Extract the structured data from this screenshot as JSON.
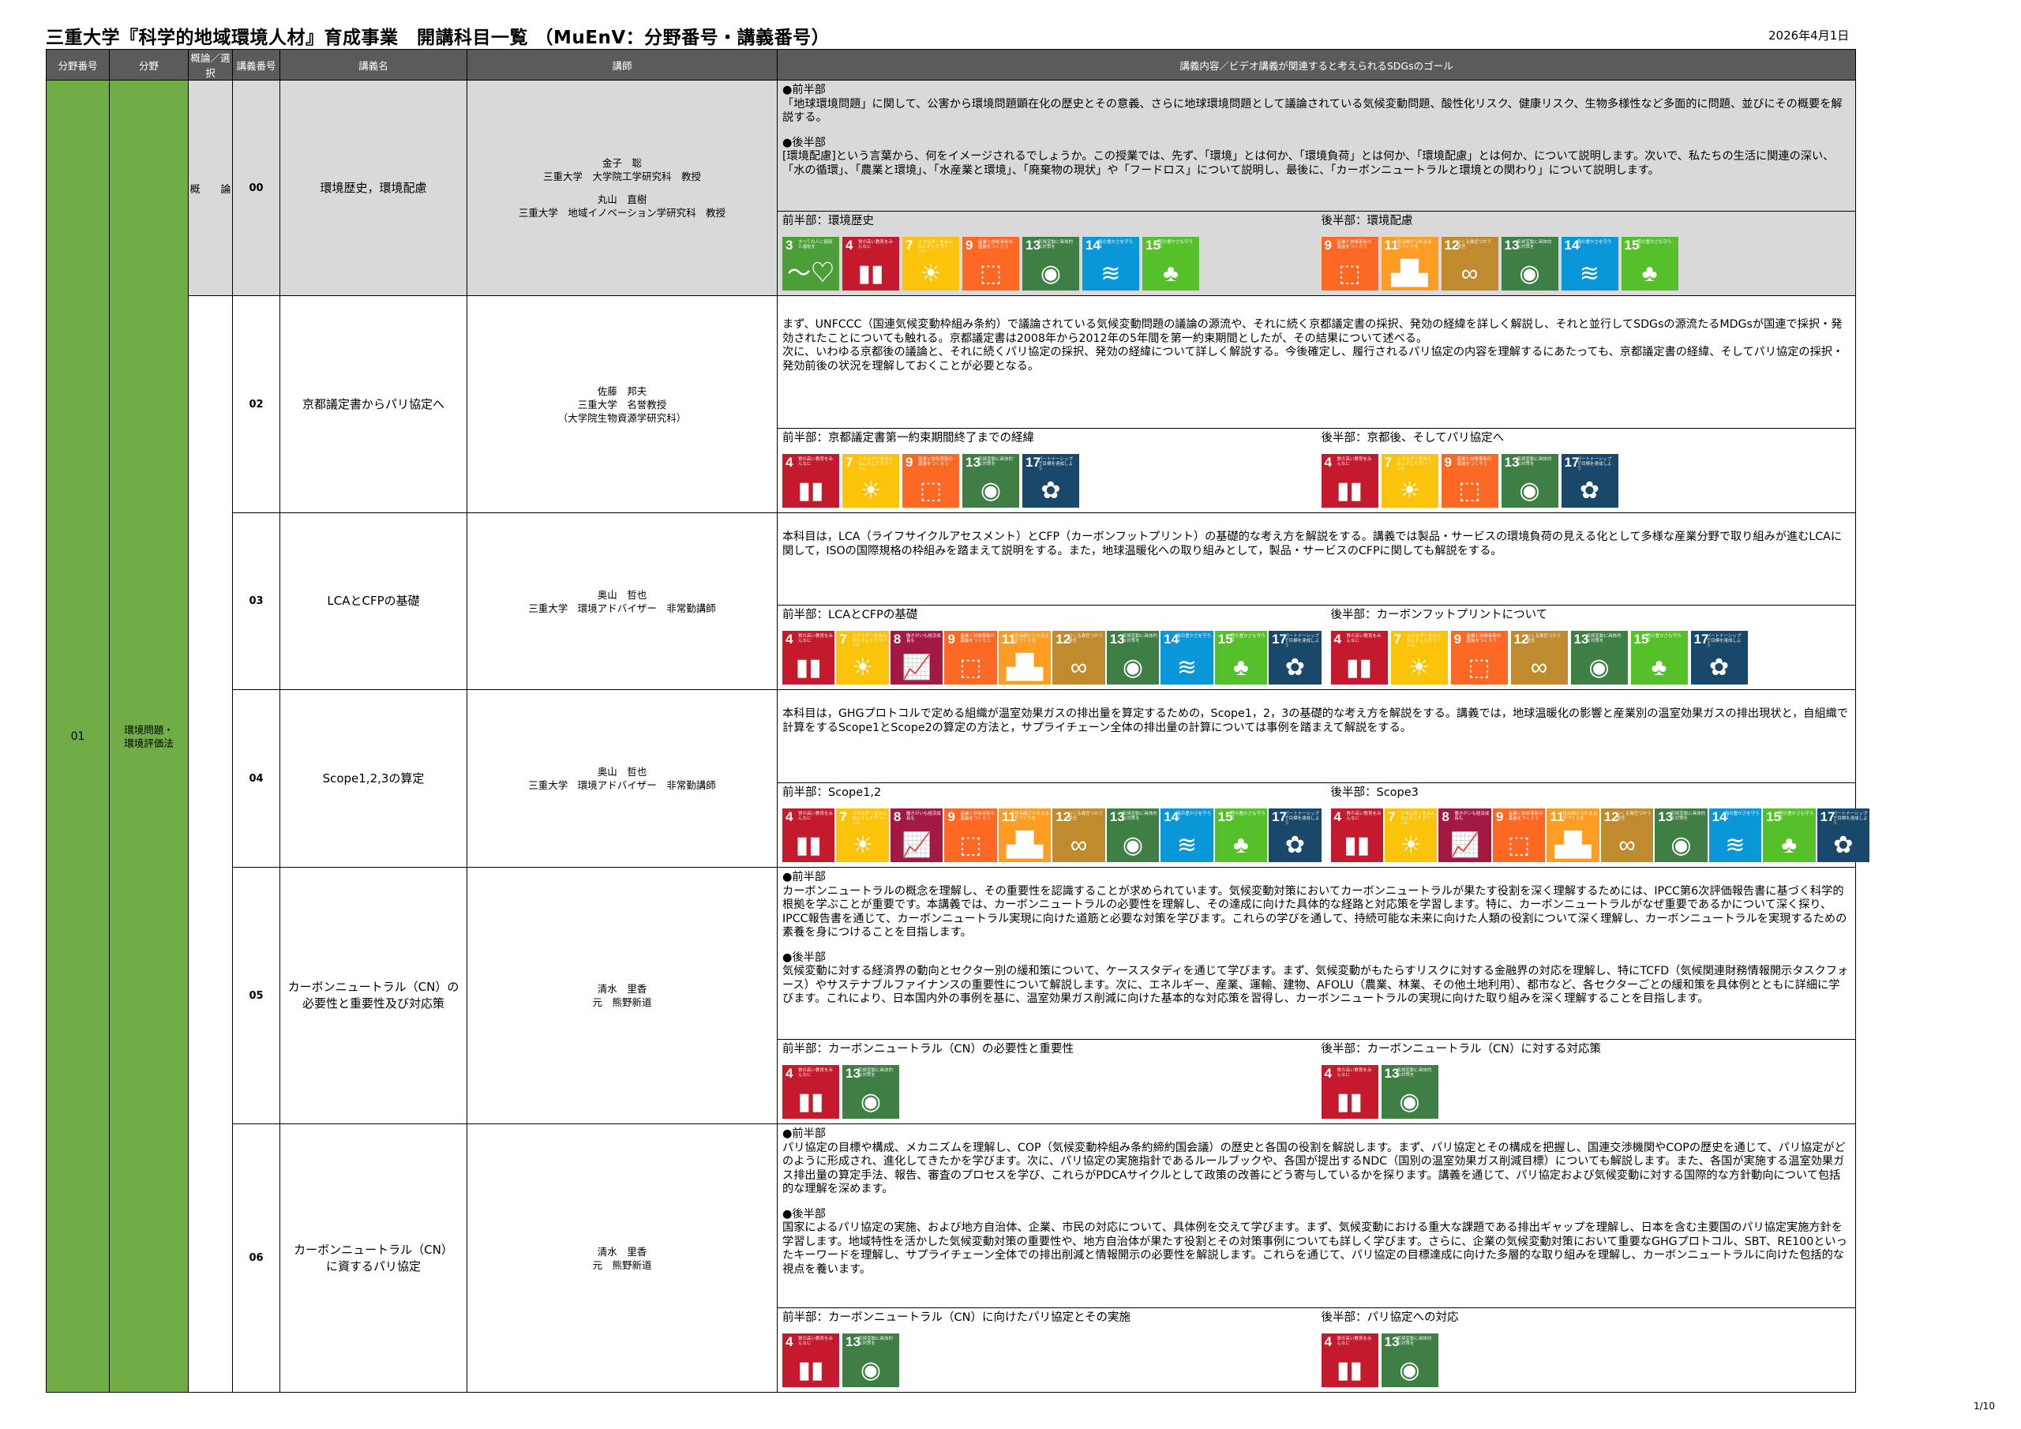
{
  "title": "三重大学『科学的地域環境人材』育成事業　開講科目一覧 （MuEnV：分野番号・講義番号）",
  "date": "2026年4月1日",
  "page": "1/10",
  "headers": {
    "field_no": "分野番号",
    "field": "分野",
    "type": "概論／選択",
    "lecture_no": "講義番号",
    "lecture_name": "講義名",
    "instructor": "講師",
    "content": "講義内容／ビデオ講義が関連すると考えられるSDGsのゴール"
  },
  "field": {
    "no": "01",
    "name_line1": "環境問題・",
    "name_line2": "環境評価法"
  },
  "sdg_colors": {
    "3": "#4c9f38",
    "4": "#c5192d",
    "7": "#fcc30b",
    "8": "#a21942",
    "9": "#fd6925",
    "11": "#fd9d24",
    "12": "#bf8b2e",
    "13": "#3f7e44",
    "14": "#0a97d9",
    "15": "#56c02b",
    "17": "#19486a"
  },
  "sdg_glyphs": {
    "3": "〜♡",
    "4": "▮▮",
    "7": "☀",
    "8": "📈",
    "9": "⬚",
    "11": "▟▙",
    "12": "∞",
    "13": "◉",
    "14": "≋",
    "15": "♣",
    "17": "✿"
  },
  "sdg_small": {
    "3": "すべての人に健康と福祉を",
    "4": "質の高い教育をみんなに",
    "7": "エネルギーをみんなにそしてクリーンに",
    "8": "働きがいも経済成長も",
    "9": "産業と技術革新の基盤をつくろう",
    "11": "住み続けられるまちづくりを",
    "12": "つくる責任つかう責任",
    "13": "気候変動に具体的な対策を",
    "14": "海の豊かさを守ろう",
    "15": "陸の豊かさも守ろう",
    "17": "パートナーシップで目標を達成しよう"
  },
  "rows": [
    {
      "type": "概　　論",
      "no": "00",
      "name": [
        "環境歴史，環境配慮"
      ],
      "instructor": [
        "金子　聡",
        "三重大学　大学院工学研究科　教授",
        "",
        "丸山　直樹",
        "三重大学　地域イノベーション学研究科　教授"
      ],
      "desc": [
        "●前半部",
        "「地球環境問題」に関して、公害から環境問題顕在化の歴史とその意義、さらに地球環境問題として議論されている気候変動問題、酸性化リスク、健康リスク、生物多様性など多面的に問題、並びにその概要を解説する。",
        "",
        "●後半部",
        "[環境配慮]という言葉から、何をイメージされるでしょうか。この授業では、先ず、「環境」とは何か、「環境負荷」とは何か、「環境配慮」とは何か、について説明します。次いで、私たちの生活に関連の深い、「水の循環」、「農業と環境」、「水産業と環境」、「廃棄物の現状」や「フードロス」について説明し、最後に、「カーボンニュートラルと環境との関わり」について説明します。"
      ],
      "left_label": "前半部：環境歴史",
      "left_sdgs": [
        "3",
        "4",
        "7",
        "9",
        "13",
        "14",
        "15"
      ],
      "right_label": "後半部：環境配慮",
      "right_sdgs": [
        "9",
        "11",
        "12",
        "13",
        "14",
        "15"
      ]
    },
    {
      "type": "",
      "no": "02",
      "name": [
        "京都議定書からパリ協定へ"
      ],
      "instructor": [
        "佐藤　邦夫",
        "三重大学　名誉教授",
        "（大学院生物資源学研究科）"
      ],
      "desc": [
        "まず、UNFCCC（国連気候変動枠組み条約）で議論されている気候変動問題の議論の源流や、それに続く京都議定書の採択、発効の経緯を詳しく解説し、それと並行してSDGsの源流たるMDGsが国連で採択・発効されたことについても触れる。京都議定書は2008年から2012年の5年間を第一約束期間としたが、その結果について述べる。",
        "次に、いわゆる京都後の議論と、それに続くパリ協定の採択、発効の経緯について詳しく解説する。今後確定し、履行されるパリ協定の内容を理解するにあたっても、京都議定書の経緯、そしてパリ協定の採択・発効前後の状況を理解しておくことが必要となる。"
      ],
      "left_label": "前半部：京都議定書第一約束期間終了までの経緯",
      "left_sdgs": [
        "4",
        "7",
        "9",
        "13",
        "17"
      ],
      "right_label": "後半部：京都後、そしてパリ協定へ",
      "right_sdgs": [
        "4",
        "7",
        "9",
        "13",
        "17"
      ]
    },
    {
      "type": "",
      "no": "03",
      "name": [
        "LCAとCFPの基礎"
      ],
      "instructor": [
        "奥山　哲也",
        "三重大学　環境アドバイザー　非常勤講師"
      ],
      "desc": [
        "本科目は，LCA（ライフサイクルアセスメント）とCFP（カーボンフットプリント）の基礎的な考え方を解説をする。講義では製品・サービスの環境負荷の見える化として多様な産業分野で取り組みが進むLCAに関して，ISOの国際規格の枠組みを踏まえて説明をする。また，地球温暖化への取り組みとして，製品・サービスのCFPに関しても解説をする。"
      ],
      "left_label": "前半部：LCAとCFPの基礎",
      "left_sdgs": [
        "4",
        "7",
        "8",
        "9",
        "11",
        "12",
        "13",
        "14",
        "15",
        "17"
      ],
      "right_label": "後半部：カーボンフットプリントについて",
      "right_sdgs": [
        "4",
        "7",
        "9",
        "12",
        "13",
        "15",
        "17"
      ]
    },
    {
      "type": "",
      "no": "04",
      "name": [
        "Scope1,2,3の算定"
      ],
      "instructor": [
        "奥山　哲也",
        "三重大学　環境アドバイザー　非常勤講師"
      ],
      "desc": [
        "本科目は，GHGプロトコルで定める組織が温室効果ガスの排出量を算定するための，Scope1，2，3の基礎的な考え方を解説をする。講義では，地球温暖化の影響と産業別の温室効果ガスの排出現状と，自組織で計算をするScope1とScope2の算定の方法と，サプライチェーン全体の排出量の計算については事例を踏まえて解説をする。"
      ],
      "left_label": "前半部：Scope1,2",
      "left_sdgs": [
        "4",
        "7",
        "8",
        "9",
        "11",
        "12",
        "13",
        "14",
        "15",
        "17"
      ],
      "right_label": "後半部：Scope3",
      "right_sdgs": [
        "4",
        "7",
        "8",
        "9",
        "11",
        "12",
        "13",
        "14",
        "15",
        "17"
      ]
    },
    {
      "type": "",
      "no": "05",
      "name": [
        "カーボンニュートラル（CN）の",
        "必要性と重要性及び対応策"
      ],
      "instructor": [
        "清水　里香",
        "元　熊野新道"
      ],
      "desc": [
        "●前半部",
        "カーボンニュートラルの概念を理解し、その重要性を認識することが求められています。気候変動対策においてカーボンニュートラルが果たす役割を深く理解するためには、IPCC第6次評価報告書に基づく科学的根拠を学ぶことが重要です。本講義では、カーボンニュートラルの必要性を理解し、その達成に向けた具体的な経路と対応策を学習します。特に、カーボンニュートラルがなぜ重要であるかについて深く探り、IPCC報告書を通じて、カーボンニュートラル実現に向けた道筋と必要な対策を学びます。これらの学びを通して、持続可能な未来に向けた人類の役割について深く理解し、カーボンニュートラルを実現するための素養を身につけることを目指します。",
        "",
        "●後半部",
        "気候変動に対する経済界の動向とセクター別の緩和策について、ケーススタディを通じて学びます。まず、気候変動がもたらすリスクに対する金融界の対応を理解し、特にTCFD（気候関連財務情報開示タスクフォース）やサステナブルファイナンスの重要性について解説します。次に、エネルギー、産業、運輸、建物、AFOLU（農業、林業、その他土地利用）、都市など、各セクターごとの緩和策を具体例とともに詳細に学びます。これにより、日本国内外の事例を基に、温室効果ガス削減に向けた基本的な対応策を習得し、カーボンニュートラルの実現に向けた取り組みを深く理解することを目指します。"
      ],
      "left_label": "前半部：カーボンニュートラル（CN）の必要性と重要性",
      "left_sdgs": [
        "4",
        "13"
      ],
      "right_label": "後半部：カーボンニュートラル（CN）に対する対応策",
      "right_sdgs": [
        "4",
        "13"
      ]
    },
    {
      "type": "",
      "no": "06",
      "name": [
        "カーボンニュートラル（CN）",
        "に資するパリ協定"
      ],
      "instructor": [
        "清水　里香",
        "元　熊野新道"
      ],
      "desc": [
        "●前半部",
        "パリ協定の目標や構成、メカニズムを理解し、COP（気候変動枠組み条約締約国会議）の歴史と各国の役割を解説します。まず、パリ協定とその構成を把握し、国連交渉機関やCOPの歴史を通じて、パリ協定がどのように形成され、進化してきたかを学びます。次に、パリ協定の実施指針であるルールブックや、各国が提出するNDC（国別の温室効果ガス削減目標）についても解説します。また、各国が実施する温室効果ガス排出量の算定手法、報告、審査のプロセスを学び、これらがPDCAサイクルとして政策の改善にどう寄与しているかを探ります。講義を通じて、パリ協定および気候変動に対する国際的な方針動向について包括的な理解を深めます。",
        "",
        "●後半部",
        "国家によるパリ協定の実施、および地方自治体、企業、市民の対応について、具体例を交えて学びます。まず、気候変動における重大な課題である排出ギャップを理解し、日本を含む主要国のパリ協定実施方針を学習します。地域特性を活かした気候変動対策の重要性や、地方自治体が果たす役割とその対策事例についても詳しく学びます。さらに、企業の気候変動対策において重要なGHGプロトコル、SBT、RE100といったキーワードを理解し、サプライチェーン全体での排出削減と情報開示の必要性を解説します。これらを通じて、パリ協定の目標達成に向けた多層的な取り組みを理解し、カーボンニュートラルに向けた包括的な視点を養います。"
      ],
      "left_label": "前半部：カーボンニュートラル（CN）に向けたパリ協定とその実施",
      "left_sdgs": [
        "4",
        "13"
      ],
      "right_label": "後半部：パリ協定への対応",
      "right_sdgs": [
        "4",
        "13"
      ]
    }
  ]
}
